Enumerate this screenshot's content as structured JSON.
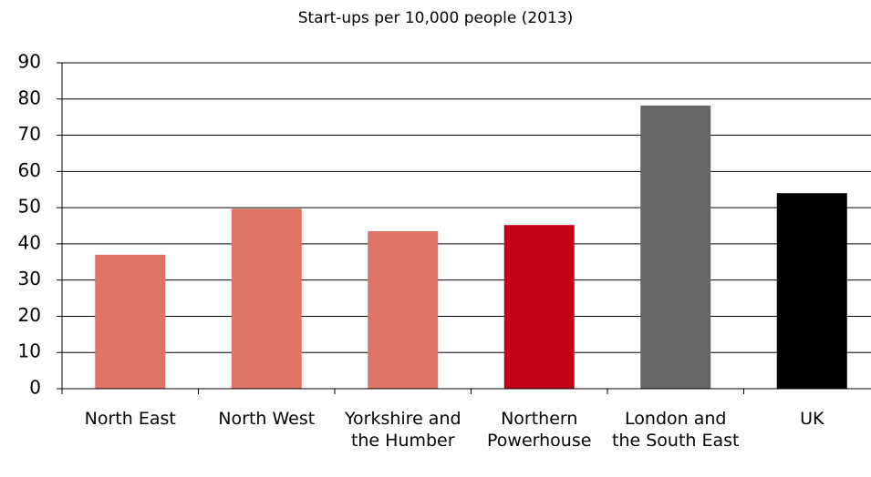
{
  "chart_data": {
    "type": "bar",
    "title": "Start-ups per 10,000 people (2013)",
    "categories": [
      "North East",
      "North West",
      "Yorkshire and the Humber",
      "Northern Powerhouse",
      "London and the South East",
      "UK"
    ],
    "values": [
      37,
      49.7,
      43.5,
      45.2,
      78.2,
      54
    ],
    "colors": [
      "#e07367",
      "#e07367",
      "#e07367",
      "#c50016",
      "#666666",
      "#000000"
    ],
    "ylim": [
      0,
      90
    ],
    "yticks": [
      0,
      10,
      20,
      30,
      40,
      50,
      60,
      70,
      80,
      90
    ],
    "grid": true
  }
}
